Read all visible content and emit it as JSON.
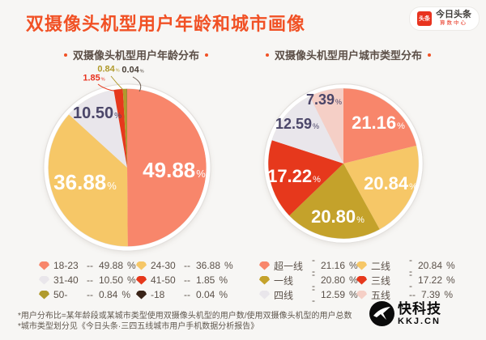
{
  "header": {
    "title": "双摄像头机型用户年龄和城市画像",
    "logo": {
      "badge": "头条",
      "name": "今日头条",
      "sub": "算数中心"
    }
  },
  "ui": {
    "percent_sign": "%",
    "legend_separator": "--"
  },
  "colors": {
    "bg": "#F7F6F4",
    "title": "#F15125",
    "sub": "#5C4F47",
    "text": "#5B5149",
    "navy": "#4B4669",
    "red": "#E8331F",
    "olive": "#B09A2C",
    "ring": "#E3E0DD"
  },
  "chart_data": [
    {
      "type": "pie",
      "title": "双摄像头机型用户年龄分布",
      "labels": [
        "18-23",
        "24-30",
        "31-40",
        "41-50",
        "50-",
        "-18"
      ],
      "values": [
        49.88,
        36.88,
        10.5,
        1.85,
        0.84,
        0.04
      ],
      "display": [
        "49.88",
        "36.88",
        "10.50",
        "1.85",
        "0.84",
        "0.04"
      ],
      "colors": [
        "#F8866B",
        "#F6C767",
        "#E9E6EB",
        "#E6381C",
        "#B09A2C",
        "#3A2418"
      ],
      "start_angle_deg": 0,
      "direction": "clockwise",
      "legend_position": "bottom"
    },
    {
      "type": "pie",
      "title": "双摄像头机型用户城市类型分布",
      "labels": [
        "超一线",
        "二线",
        "一线",
        "三线",
        "四线",
        "五线"
      ],
      "values": [
        21.16,
        20.84,
        20.8,
        17.22,
        12.59,
        7.39
      ],
      "display": [
        "21.16",
        "20.84",
        "20.80",
        "17.22",
        "12.59",
        "7.39"
      ],
      "colors": [
        "#F8866B",
        "#F6C767",
        "#C4A22B",
        "#E6381C",
        "#E9E6EB",
        "#F5CFC6"
      ],
      "start_angle_deg": 0,
      "direction": "clockwise",
      "legend_position": "bottom"
    }
  ],
  "footnotes": [
    "*用户分布比=某年龄段或某城市类型使用双摄像头机型的用户数/使用双摄像头机型的用户总数",
    "*城市类型划分见《今日头条·三四五线城市用户手机数据分析报告》"
  ],
  "watermark": {
    "name": "快科技",
    "domain": "KKJ.CN"
  }
}
